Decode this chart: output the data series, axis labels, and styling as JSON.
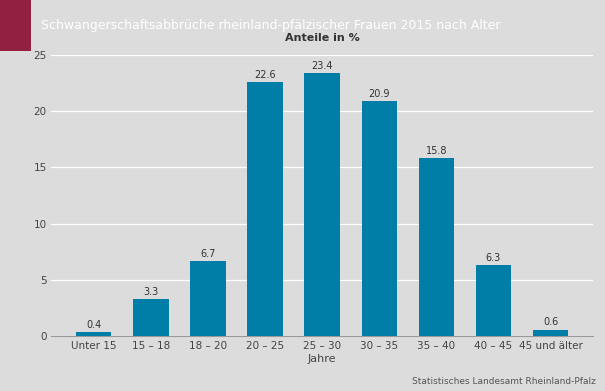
{
  "title": "Schwangerschaftsabbrüche rheinland-pfälzischer Frauen 2015 nach Alter",
  "ylabel": "Anteile in %",
  "xlabel": "Jahre",
  "categories": [
    "Unter 15",
    "15 – 18",
    "18 – 20",
    "20 – 25",
    "25 – 30",
    "30 – 35",
    "35 – 40",
    "40 – 45",
    "45 und älter"
  ],
  "values": [
    0.4,
    3.3,
    6.7,
    22.6,
    23.4,
    20.9,
    15.8,
    6.3,
    0.6
  ],
  "bar_color": "#007ea7",
  "ylim": [
    0,
    25
  ],
  "yticks": [
    0,
    5,
    10,
    15,
    20,
    25
  ],
  "background_color": "#dcdcdc",
  "title_bg_color": "#808080",
  "title_accent_color": "#922040",
  "title_text_color": "#ffffff",
  "bar_label_fontsize": 7,
  "axis_label_fontsize": 8,
  "tick_fontsize": 7.5,
  "footer_text": "Statistisches Landesamt Rheinland-Pfalz",
  "footer_fontsize": 6.5,
  "title_fontsize": 9
}
